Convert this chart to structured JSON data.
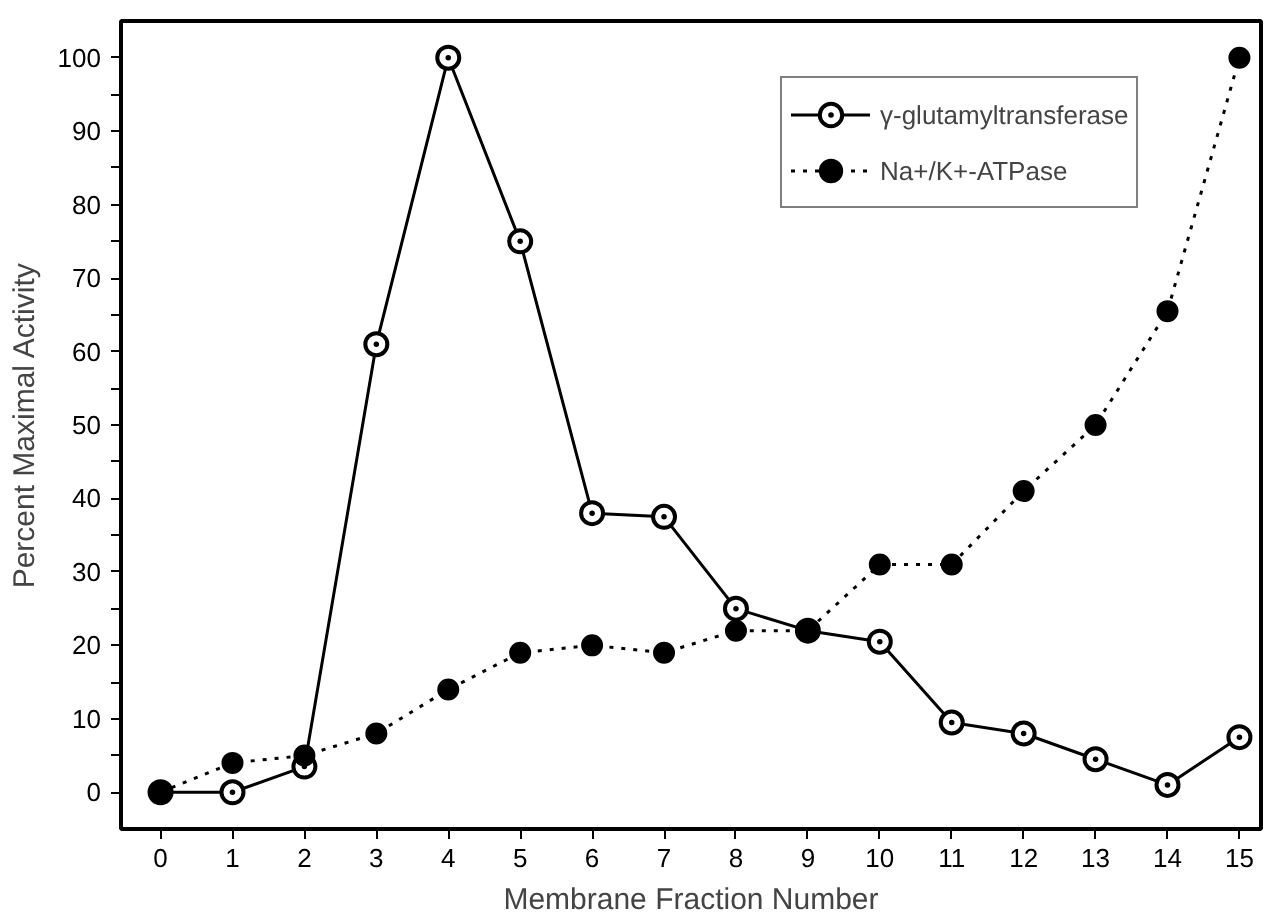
{
  "chart_data": {
    "type": "line",
    "xlabel": "Membrane Fraction Number",
    "ylabel": "Percent Maximal Activity",
    "x": [
      0,
      1,
      2,
      3,
      4,
      5,
      6,
      7,
      8,
      9,
      10,
      11,
      12,
      13,
      14,
      15
    ],
    "series": [
      {
        "name": "γ-glutamyltransferase",
        "color": "#000000",
        "line_style": "solid",
        "marker": "circle_dot",
        "values": [
          0,
          0,
          3.5,
          61,
          100,
          75,
          38,
          37.5,
          25,
          22,
          20.5,
          9.5,
          8,
          4.5,
          1,
          7.5
        ]
      },
      {
        "name": "Na+/K+-ATPase",
        "color": "#000000",
        "line_style": "dotted",
        "marker": "circle",
        "values": [
          0,
          4,
          5,
          8,
          14,
          19,
          20,
          19,
          22,
          22,
          31,
          31,
          41,
          50,
          65.5,
          100
        ]
      }
    ],
    "xlim": [
      -0.55,
      15.3
    ],
    "ylim": [
      -5,
      105
    ],
    "xticks": [
      0,
      1,
      2,
      3,
      4,
      5,
      6,
      7,
      8,
      9,
      10,
      11,
      12,
      13,
      14,
      15
    ],
    "yticks": [
      0,
      {
        "value": 5,
        "label": null
      },
      10,
      {
        "value": 15,
        "label": null
      },
      20,
      {
        "value": 25,
        "label": null
      },
      30,
      {
        "value": 35,
        "label": null
      },
      40,
      {
        "value": 45,
        "label": null
      },
      50,
      {
        "value": 55,
        "label": null
      },
      60,
      {
        "value": 65,
        "label": null
      },
      70,
      {
        "value": 75,
        "label": null
      },
      80,
      {
        "value": 85,
        "label": null
      },
      90,
      {
        "value": 95,
        "label": null
      },
      100
    ],
    "grid": false,
    "legend": "top right"
  }
}
